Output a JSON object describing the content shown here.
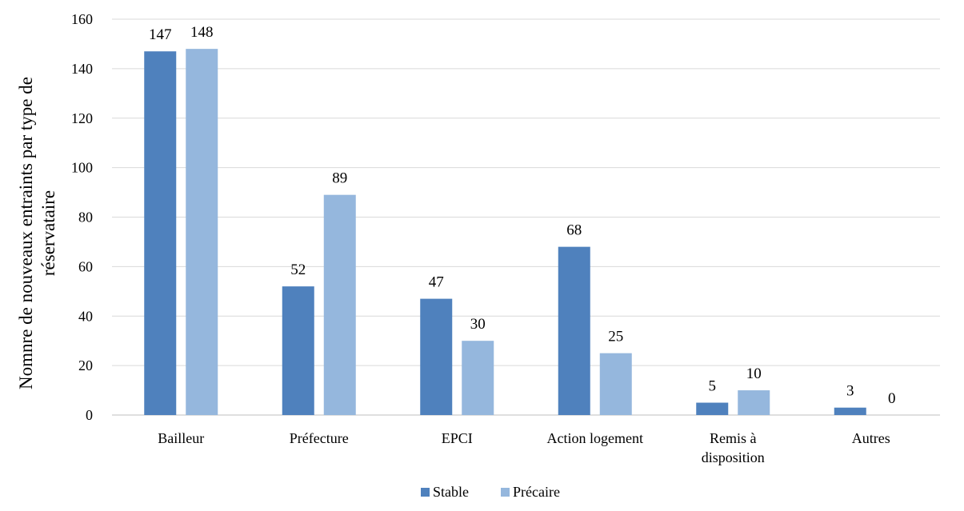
{
  "chart_data": {
    "type": "bar",
    "title": "",
    "xlabel": "",
    "ylabel_lines": [
      "Nomnre de nouveaux entraints par type de",
      "réservataire"
    ],
    "categories": [
      [
        "Bailleur"
      ],
      [
        "Préfecture"
      ],
      [
        "EPCI"
      ],
      [
        "Action logement"
      ],
      [
        "Remis à",
        "disposition"
      ],
      [
        "Autres"
      ]
    ],
    "series": [
      {
        "name": "Stable",
        "color": "#4f81bd",
        "values": [
          147,
          52,
          47,
          68,
          5,
          3
        ]
      },
      {
        "name": "Précaire",
        "color": "#95b7dd",
        "values": [
          148,
          89,
          30,
          25,
          10,
          0
        ]
      }
    ],
    "ylim": [
      0,
      160
    ],
    "yticks": [
      0,
      20,
      40,
      60,
      80,
      100,
      120,
      140,
      160
    ],
    "grid": true,
    "grid_color": "#d9d9d9",
    "legend_position": "bottom"
  }
}
